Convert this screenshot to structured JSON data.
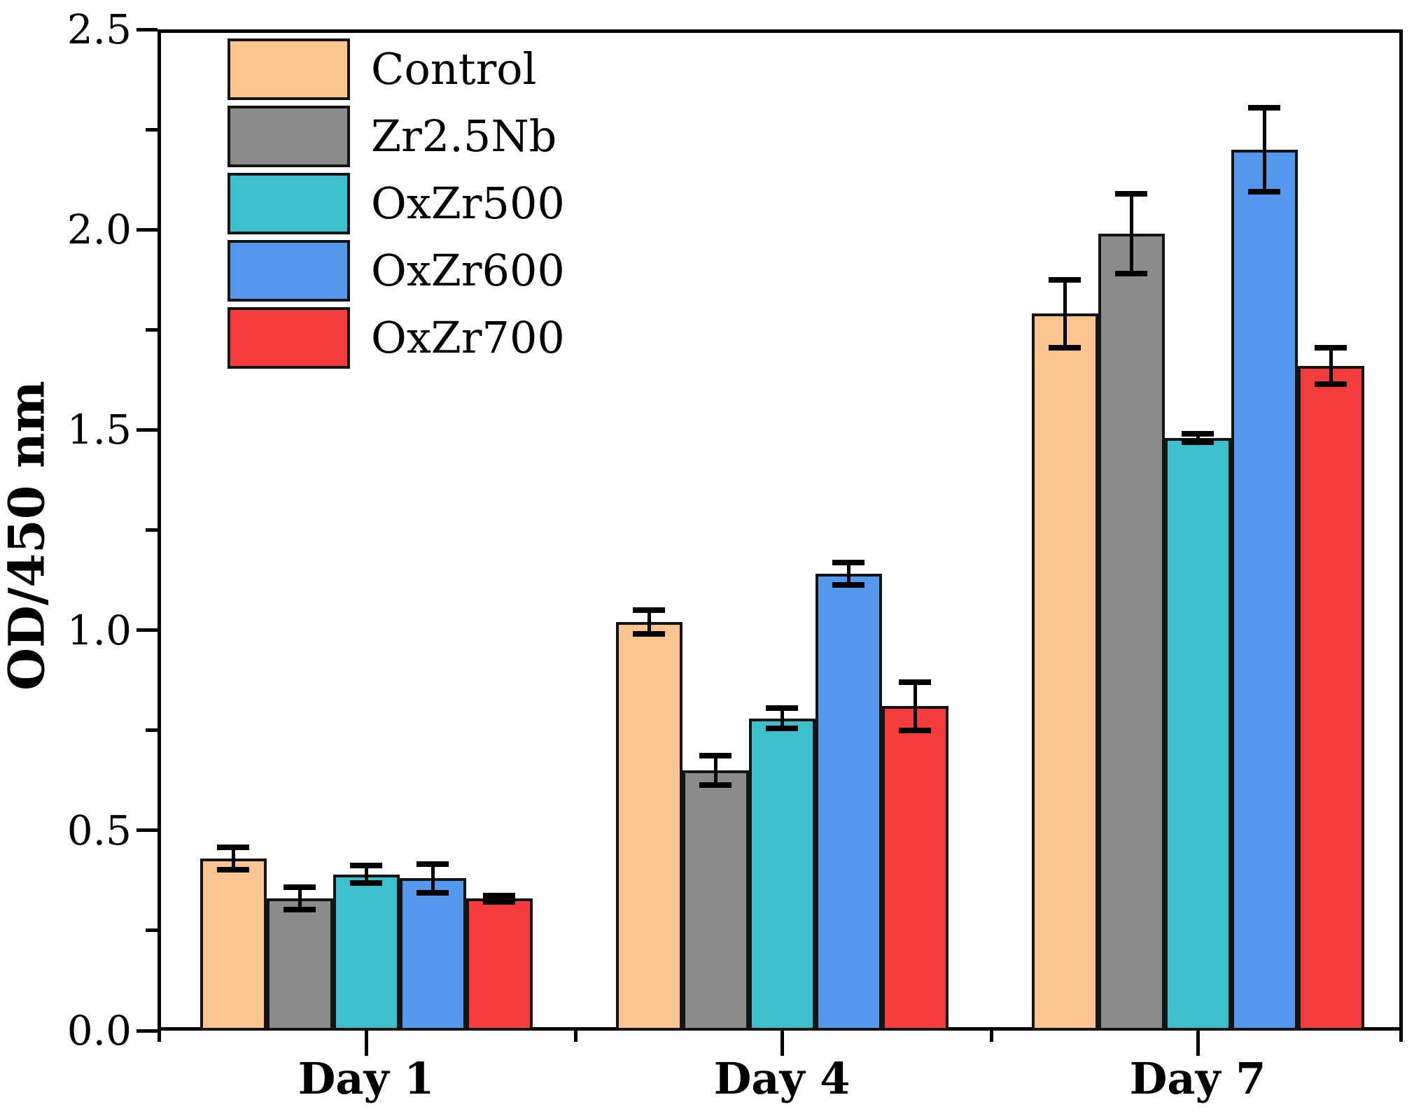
{
  "chart_data": {
    "type": "bar",
    "title": "",
    "xlabel": "",
    "ylabel": "OD/450 nm",
    "ylim": [
      0,
      2.5
    ],
    "ytick_major_step": 0.5,
    "ytick_minor_step": 0.25,
    "ytick_labels": [
      "0.0",
      "0.5",
      "1.0",
      "1.5",
      "2.0",
      "2.5"
    ],
    "categories": [
      "Day 1",
      "Day 4",
      "Day 7"
    ],
    "grid": false,
    "legend_position": "top-left-inside",
    "bar_border_color": "#141414",
    "error_bar_color": "#000000",
    "series": [
      {
        "name": "Control",
        "color": "#FAC48E",
        "values": [
          0.43,
          1.02,
          1.79
        ],
        "errors": [
          0.028,
          0.03,
          0.085
        ]
      },
      {
        "name": "Zr2.5Nb",
        "color": "#8B8B8B",
        "values": [
          0.33,
          0.65,
          1.99
        ],
        "errors": [
          0.028,
          0.036,
          0.1
        ]
      },
      {
        "name": "OxZr500",
        "color": "#3CC0CC",
        "values": [
          0.39,
          0.78,
          1.48
        ],
        "errors": [
          0.022,
          0.026,
          0.01
        ]
      },
      {
        "name": "OxZr600",
        "color": "#5498EE",
        "values": [
          0.38,
          1.14,
          2.2
        ],
        "errors": [
          0.036,
          0.028,
          0.105
        ]
      },
      {
        "name": "OxZr700",
        "color": "#F53C3D",
        "values": [
          0.33,
          0.81,
          1.66
        ],
        "errors": [
          0.008,
          0.06,
          0.045
        ]
      }
    ]
  }
}
